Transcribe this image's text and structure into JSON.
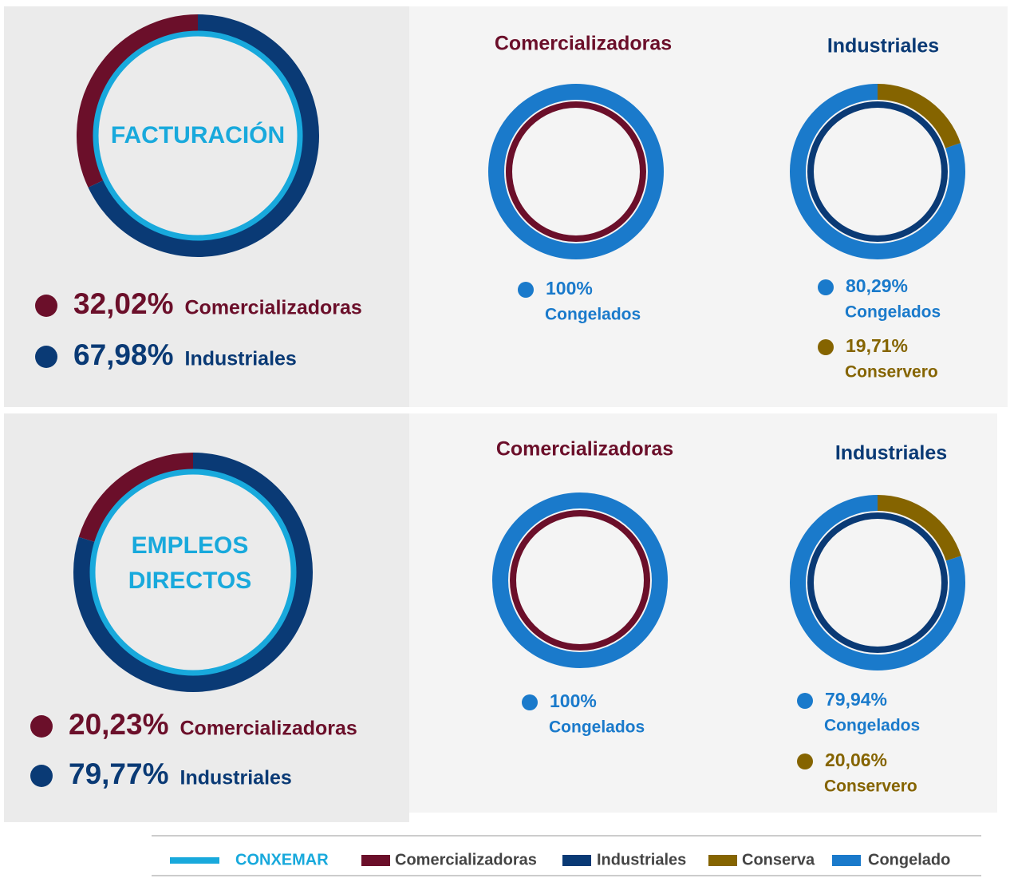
{
  "chart_data": [
    {
      "type": "pie",
      "title": "FACTURACIÓN",
      "ring_color": "#18a9dc",
      "categories": [
        "Comercializadoras",
        "Industriales"
      ],
      "values": [
        32.02,
        67.98
      ],
      "value_labels": [
        "32,02%",
        "67,98%"
      ],
      "colors": [
        "#6b0f2a",
        "#0a3a75"
      ]
    },
    {
      "type": "pie",
      "title": "Comercializadoras",
      "ring_color": "#6b0f2a",
      "categories": [
        "Congelados"
      ],
      "values": [
        100
      ],
      "value_labels": [
        "100%"
      ],
      "colors": [
        "#1a7acb"
      ]
    },
    {
      "type": "pie",
      "title": "Industriales",
      "ring_color": "#0a3a75",
      "categories": [
        "Congelados",
        "Conservero"
      ],
      "values": [
        80.29,
        19.71
      ],
      "value_labels": [
        "80,29%",
        "19,71%"
      ],
      "colors": [
        "#1a7acb",
        "#856400"
      ]
    },
    {
      "type": "pie",
      "title": "EMPLEOS DIRECTOS",
      "ring_color": "#18a9dc",
      "categories": [
        "Comercializadoras",
        "Industriales"
      ],
      "values": [
        20.23,
        79.77
      ],
      "value_labels": [
        "20,23%",
        "79,77%"
      ],
      "colors": [
        "#6b0f2a",
        "#0a3a75"
      ]
    },
    {
      "type": "pie",
      "title": "Comercializadoras",
      "ring_color": "#6b0f2a",
      "categories": [
        "Congelados"
      ],
      "values": [
        100
      ],
      "value_labels": [
        "100%"
      ],
      "colors": [
        "#1a7acb"
      ]
    },
    {
      "type": "pie",
      "title": "Industriales",
      "ring_color": "#0a3a75",
      "categories": [
        "Congelados",
        "Conservero"
      ],
      "values": [
        79.94,
        20.06
      ],
      "value_labels": [
        "79,94%",
        "20,06%"
      ],
      "colors": [
        "#1a7acb",
        "#856400"
      ]
    }
  ],
  "legend": [
    {
      "name": "CONXEMAR",
      "color": "#18a9dc"
    },
    {
      "name": "Comercializadoras",
      "color": "#6b0f2a"
    },
    {
      "name": "Industriales",
      "color": "#0a3a75"
    },
    {
      "name": "Conserva",
      "color": "#856400"
    },
    {
      "name": "Congelado",
      "color": "#1a7acb"
    }
  ]
}
